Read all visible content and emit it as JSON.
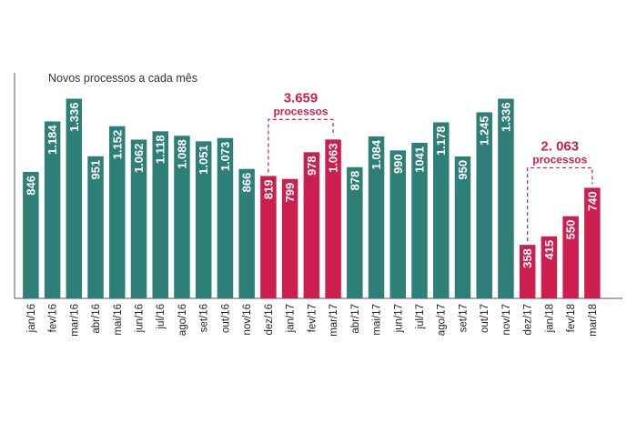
{
  "chart_data": {
    "type": "bar",
    "subtitle": "Novos processos a cada mês",
    "categories": [
      "jan/16",
      "fev/16",
      "mar/16",
      "abr/16",
      "mai/16",
      "jun/16",
      "jul/16",
      "ago/16",
      "set/16",
      "out/16",
      "nov/16",
      "dez/16",
      "jan/17",
      "fev/17",
      "mar/17",
      "abr/17",
      "mai/17",
      "jun/17",
      "jul/17",
      "ago/17",
      "set/17",
      "out/17",
      "nov/17",
      "dez/17",
      "jan/18",
      "fev/18",
      "mar/18"
    ],
    "values": [
      846,
      1184,
      1336,
      951,
      1152,
      1062,
      1118,
      1088,
      1051,
      1073,
      866,
      819,
      799,
      978,
      1063,
      878,
      1084,
      990,
      1041,
      1178,
      950,
      1245,
      1336,
      358,
      415,
      550,
      740
    ],
    "value_labels": [
      "846",
      "1.184",
      "1.336",
      "951",
      "1.152",
      "1.062",
      "1.118",
      "1.088",
      "1.051",
      "1.073",
      "866",
      "819",
      "799",
      "978",
      "1.063",
      "878",
      "1.084",
      "990",
      "1041",
      "1.178",
      "950",
      "1.245",
      "1.336",
      "358",
      "415",
      "550",
      "740"
    ],
    "highlighted": [
      false,
      false,
      false,
      false,
      false,
      false,
      false,
      false,
      false,
      false,
      false,
      true,
      true,
      true,
      true,
      false,
      false,
      false,
      false,
      false,
      false,
      false,
      false,
      true,
      true,
      true,
      true
    ],
    "ylim": [
      0,
      1500
    ],
    "grid": false,
    "colors": {
      "normal": "#2e7f77",
      "highlight": "#cc1f4f",
      "axis": "#555555",
      "text": "#222222"
    },
    "annotations": [
      {
        "value": "3.659",
        "unit": "processos",
        "from_index": 11,
        "to_index": 14
      },
      {
        "value": "2. 063",
        "unit": "processos",
        "from_index": 23,
        "to_index": 26
      }
    ]
  }
}
